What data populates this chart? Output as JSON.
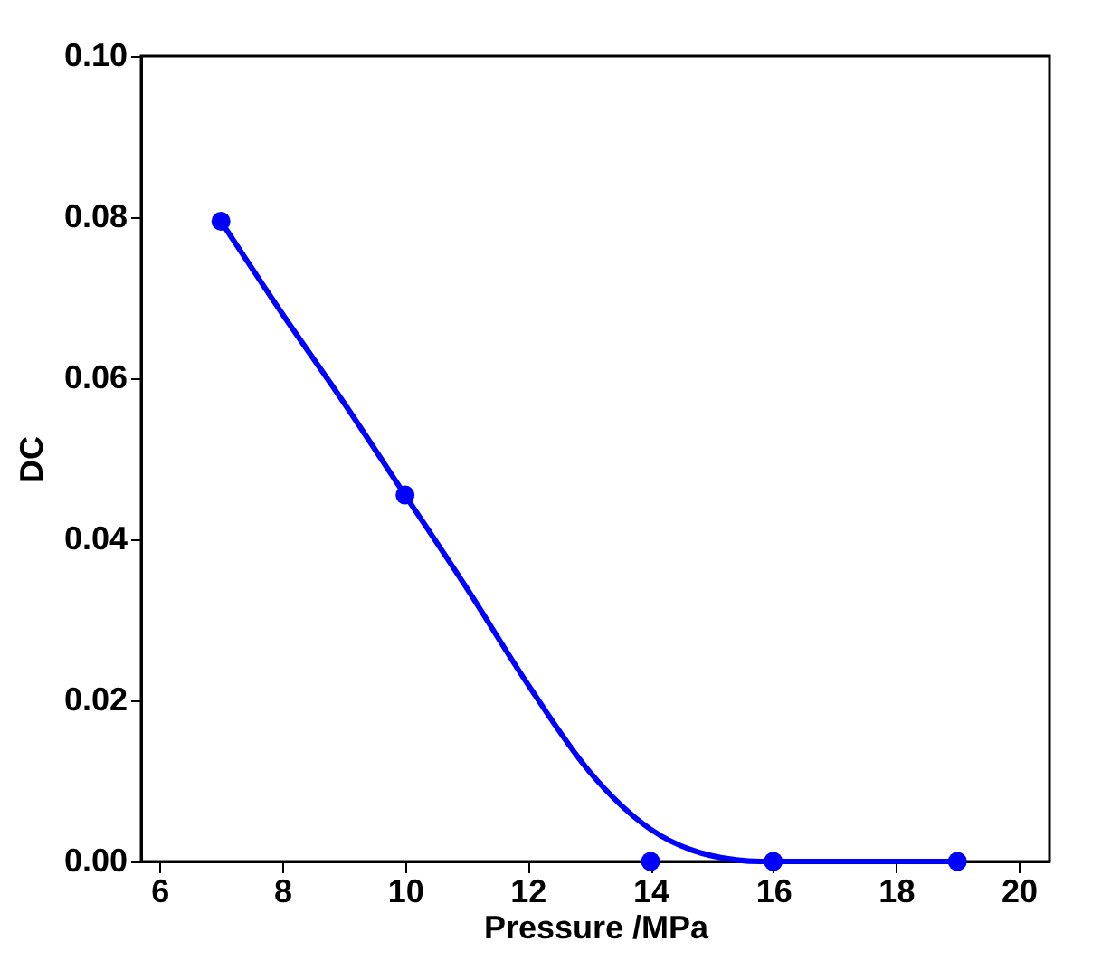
{
  "chart_data": {
    "type": "scatter",
    "xlabel": "Pressure /MPa",
    "ylabel": "DC",
    "xlim": [
      5.7,
      20.5
    ],
    "xticks": [
      6,
      8,
      10,
      12,
      14,
      16,
      18,
      20
    ],
    "ylim": [
      0,
      0.1
    ],
    "yticks": [
      {
        "value": 0,
        "label": "0.00"
      },
      {
        "value": 0.02,
        "label": "0.02"
      },
      {
        "value": 0.04,
        "label": "0.04"
      },
      {
        "value": 0.06,
        "label": "0.06"
      },
      {
        "value": 0.08,
        "label": "0.08"
      },
      {
        "value": 0.1,
        "label": "0.10"
      }
    ],
    "grid": false,
    "series": [
      {
        "marker": "circle",
        "color": "#0000ff",
        "x": [
          7,
          10,
          14,
          16,
          19
        ],
        "values": [
          0.0795,
          0.0455,
          0,
          0,
          0
        ]
      },
      {
        "type": "line",
        "marker": "none",
        "line_style": "solid",
        "color": "#0000ff",
        "x": [
          7,
          8,
          9,
          10,
          11,
          12,
          13,
          14,
          15,
          15.8,
          17,
          19
        ],
        "values": [
          0.0795,
          0.068,
          0.057,
          0.0455,
          0.034,
          0.022,
          0.0112,
          0.004,
          0.0007,
          0,
          0,
          0
        ]
      }
    ]
  }
}
